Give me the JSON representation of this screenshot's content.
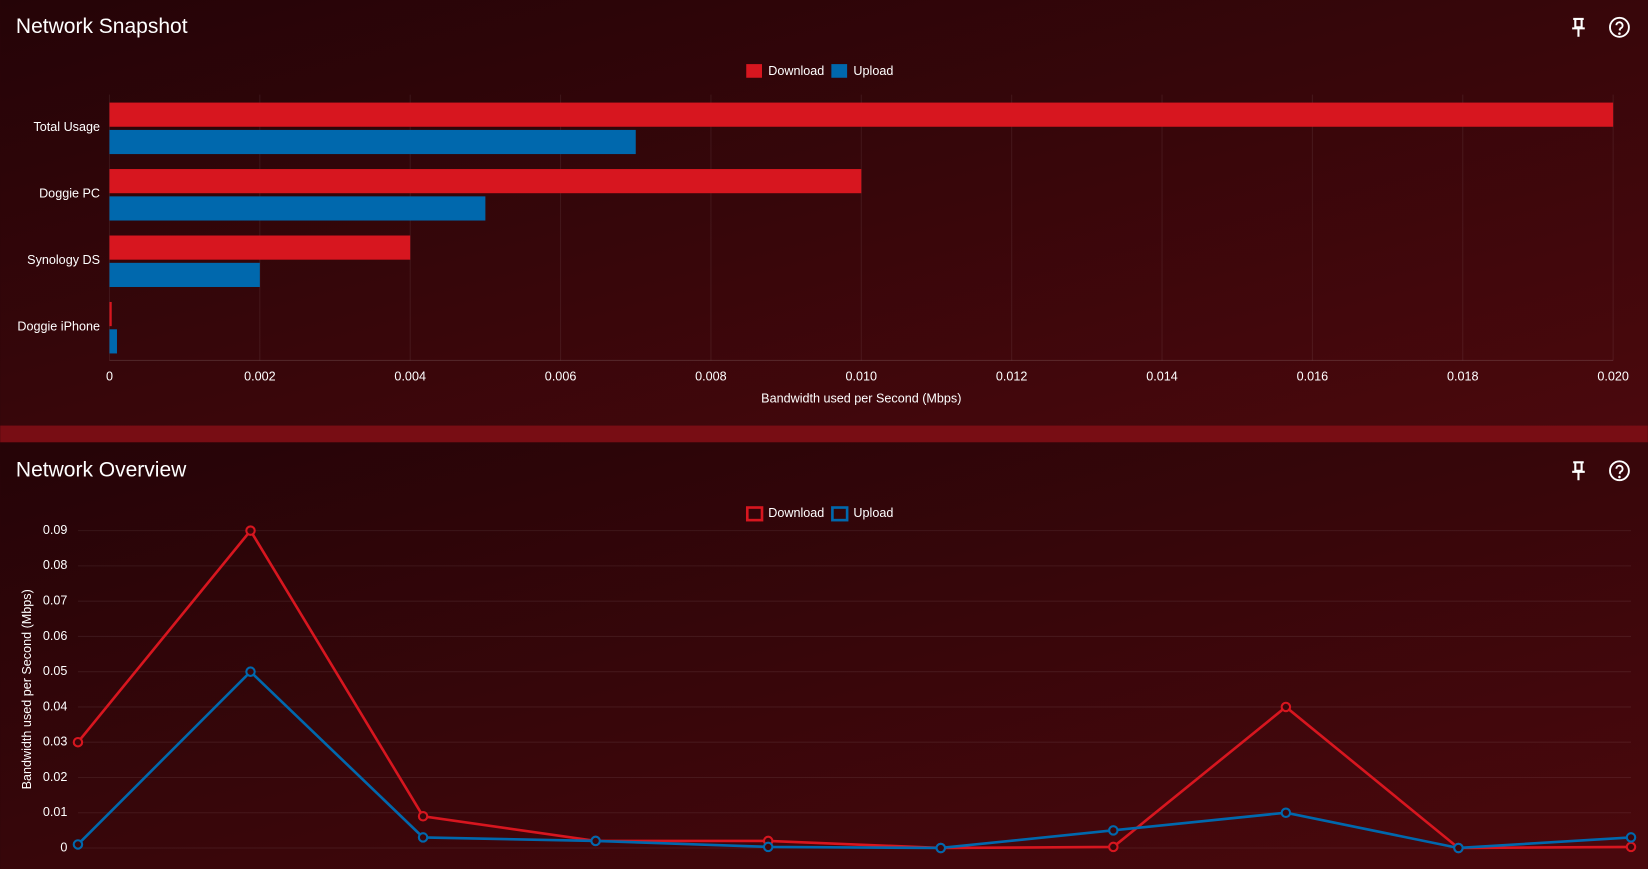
{
  "chart_data": [
    {
      "type": "hbar",
      "title": "Network Snapshot",
      "categories": [
        "Total Usage",
        "Doggie PC",
        "Synology DS",
        "Doggie iPhone"
      ],
      "series": [
        {
          "name": "Download",
          "color": "#d7161f",
          "values": [
            0.02,
            0.01,
            0.004,
            3e-05
          ]
        },
        {
          "name": "Upload",
          "color": "#0068ad",
          "values": [
            0.007,
            0.005,
            0.002,
            0.0001
          ]
        }
      ],
      "xlim": [
        0,
        0.02
      ],
      "xticks": [
        0,
        0.002,
        0.004,
        0.006,
        0.008,
        {
          "value": 0.01,
          "label": "0.010"
        },
        0.012,
        0.014,
        0.016,
        0.018,
        {
          "value": 0.02,
          "label": "0.020"
        }
      ],
      "xlabel": "Bandwidth used per Second (Mbps)",
      "grid": true,
      "legend": "top"
    },
    {
      "type": "line",
      "title": "Network Overview",
      "categories": [
        null,
        null,
        null,
        null,
        null,
        null,
        null,
        null,
        null,
        null
      ],
      "series": [
        {
          "name": "Download",
          "color": "#d7161f",
          "values": [
            0.03,
            0.09,
            0.009,
            0.002,
            0.002,
            0,
            0.0003,
            0.04,
            0,
            0.0003
          ]
        },
        {
          "name": "Upload",
          "color": "#0068ad",
          "values": [
            0.001,
            0.05,
            0.003,
            0.002,
            0.0003,
            0,
            0.005,
            0.01,
            0,
            0.003
          ]
        }
      ],
      "ylim": [
        0,
        0.09
      ],
      "yticks": [
        0,
        0.01,
        0.02,
        0.03,
        0.04,
        0.05,
        0.06,
        0.07,
        0.08,
        0.09
      ],
      "ylabel": "Bandwidth used per Second (Mbps)",
      "grid": true,
      "legend": "top"
    }
  ]
}
